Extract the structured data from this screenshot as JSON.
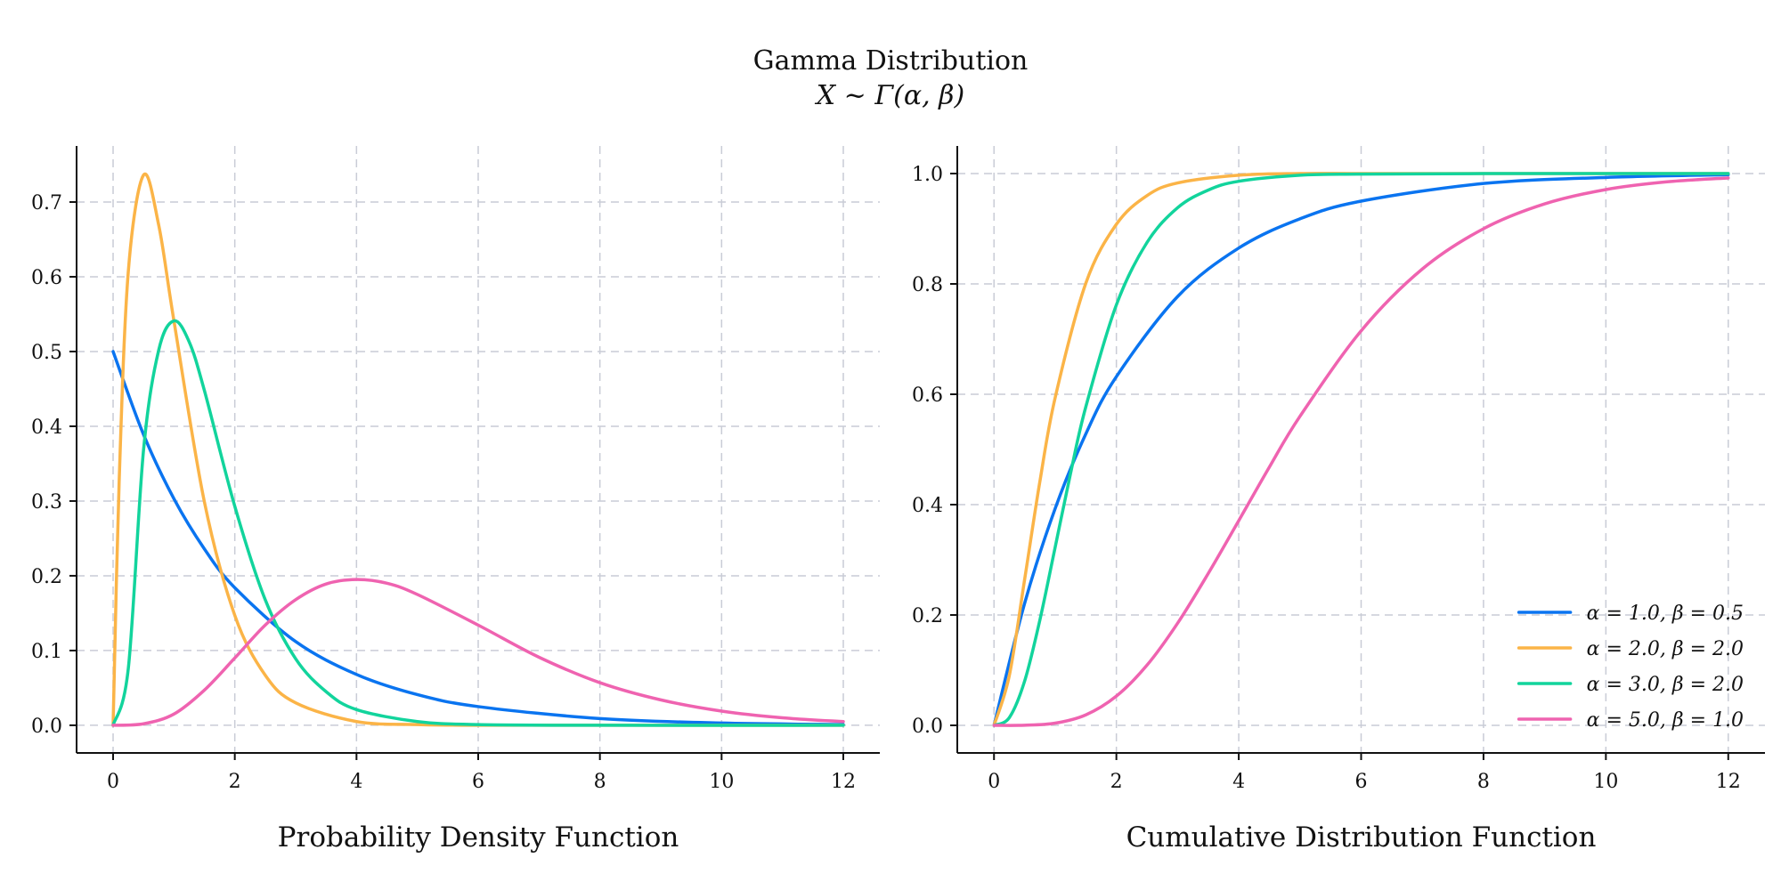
{
  "figure": {
    "title": "Gamma Distribution",
    "subtitle": "X ~ Γ(α, β)"
  },
  "chart_data": [
    {
      "type": "line",
      "title": "",
      "xlabel": "Probability Density Function",
      "ylabel": "",
      "xlim": [
        -0.6,
        12.6
      ],
      "ylim": [
        -0.037,
        0.775
      ],
      "xticks": [
        "0",
        "2",
        "4",
        "6",
        "8",
        "10",
        "12"
      ],
      "yticks": [
        "0.0",
        "0.1",
        "0.2",
        "0.3",
        "0.4",
        "0.5",
        "0.6",
        "0.7"
      ],
      "grid": true,
      "legend": "none",
      "series": [
        {
          "name": "α = 1.0, β = 0.5",
          "color": "#0a74f0",
          "x": [
            0,
            0.5,
            1,
            1.5,
            2,
            3,
            4,
            5,
            6,
            8,
            10,
            12
          ],
          "values": [
            0.5,
            0.389,
            0.303,
            0.236,
            0.184,
            0.112,
            0.068,
            0.041,
            0.025,
            0.009,
            0.003,
            0.001
          ]
        },
        {
          "name": "α = 2.0, β = 2.0",
          "color": "#fbb447",
          "x": [
            0,
            0.1,
            0.25,
            0.5,
            0.75,
            1,
            1.5,
            2,
            2.5,
            3,
            4,
            5,
            6,
            8,
            12
          ],
          "values": [
            0,
            0.327,
            0.607,
            0.736,
            0.669,
            0.541,
            0.299,
            0.147,
            0.067,
            0.03,
            0.005,
            0.001,
            0,
            0,
            0
          ]
        },
        {
          "name": "α = 3.0, β = 2.0",
          "color": "#12d49c",
          "x": [
            0,
            0.25,
            0.5,
            0.75,
            1,
            1.25,
            1.5,
            2,
            2.5,
            3,
            3.5,
            4,
            5,
            6,
            8,
            12
          ],
          "values": [
            0,
            0.076,
            0.368,
            0.502,
            0.541,
            0.513,
            0.448,
            0.293,
            0.168,
            0.089,
            0.045,
            0.021,
            0.005,
            0.001,
            0,
            0
          ]
        },
        {
          "name": "α = 5.0, β = 1.0",
          "color": "#ef63b0",
          "x": [
            0,
            0.5,
            1,
            1.5,
            2,
            2.5,
            3,
            3.5,
            4,
            4.5,
            5,
            6,
            7,
            8,
            9,
            10,
            11,
            12
          ],
          "values": [
            0,
            0.002,
            0.015,
            0.047,
            0.09,
            0.134,
            0.168,
            0.189,
            0.195,
            0.19,
            0.175,
            0.134,
            0.091,
            0.057,
            0.034,
            0.019,
            0.01,
            0.005
          ]
        }
      ]
    },
    {
      "type": "line",
      "title": "",
      "xlabel": "Cumulative Distribution Function",
      "ylabel": "",
      "xlim": [
        -0.6,
        12.6
      ],
      "ylim": [
        -0.05,
        1.05
      ],
      "xticks": [
        "0",
        "2",
        "4",
        "6",
        "8",
        "10",
        "12"
      ],
      "yticks": [
        "0.0",
        "0.2",
        "0.4",
        "0.6",
        "0.8",
        "1.0"
      ],
      "grid": true,
      "legend": "bottom-right",
      "series": [
        {
          "name": "α = 1.0, β = 0.5",
          "color": "#0a74f0",
          "x": [
            0,
            0.5,
            1,
            1.5,
            2,
            3,
            4,
            5,
            6,
            8,
            10,
            12
          ],
          "values": [
            0,
            0.221,
            0.393,
            0.528,
            0.632,
            0.777,
            0.865,
            0.918,
            0.95,
            0.982,
            0.993,
            0.998
          ]
        },
        {
          "name": "α = 2.0, β = 2.0",
          "color": "#fbb447",
          "x": [
            0,
            0.25,
            0.5,
            0.75,
            1,
            1.5,
            2,
            2.5,
            3,
            4,
            5,
            6,
            8,
            12
          ],
          "values": [
            0,
            0.09,
            0.264,
            0.442,
            0.594,
            0.801,
            0.908,
            0.96,
            0.983,
            0.997,
            1.0,
            1.0,
            1.0,
            1.0
          ]
        },
        {
          "name": "α = 3.0, β = 2.0",
          "color": "#12d49c",
          "x": [
            0,
            0.25,
            0.5,
            0.75,
            1,
            1.25,
            1.5,
            2,
            2.5,
            3,
            3.5,
            4,
            5,
            6,
            8,
            12
          ],
          "values": [
            0,
            0.014,
            0.08,
            0.191,
            0.323,
            0.456,
            0.577,
            0.762,
            0.875,
            0.938,
            0.97,
            0.986,
            0.997,
            0.999,
            1.0,
            1.0
          ]
        },
        {
          "name": "α = 5.0, β = 1.0",
          "color": "#ef63b0",
          "x": [
            0,
            0.5,
            1,
            1.5,
            2,
            2.5,
            3,
            3.5,
            4,
            4.5,
            5,
            6,
            7,
            8,
            9,
            10,
            11,
            12
          ],
          "values": [
            0,
            0.0002,
            0.004,
            0.019,
            0.053,
            0.109,
            0.185,
            0.275,
            0.371,
            0.468,
            0.56,
            0.715,
            0.827,
            0.9,
            0.945,
            0.971,
            0.985,
            0.992
          ]
        }
      ]
    }
  ]
}
